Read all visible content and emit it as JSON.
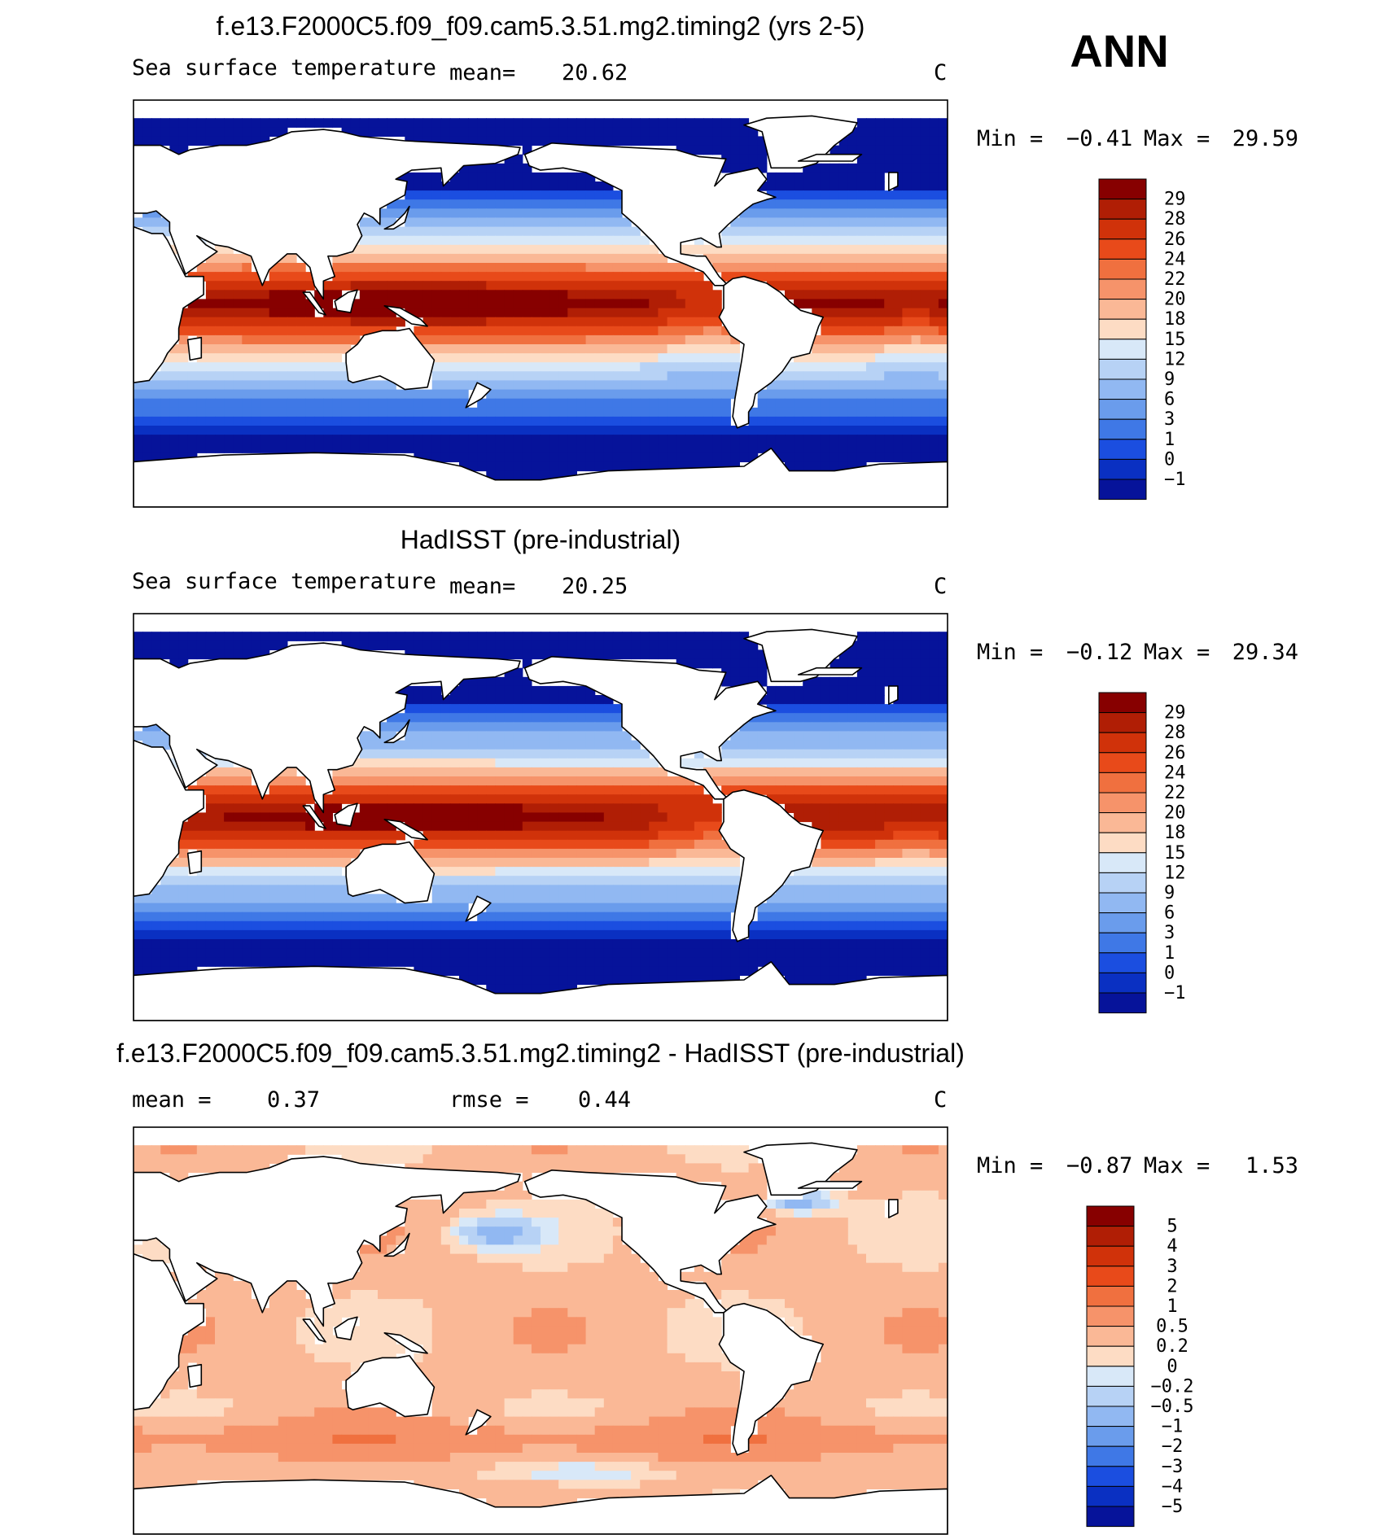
{
  "page_label": "ANN",
  "colors": {
    "land": "#ffffff",
    "coast": "#000000",
    "frame": "#000000"
  },
  "chart_data": [
    {
      "type": "heatmap",
      "id": "model",
      "title": "f.e13.F2000C5.f09_f09.cam5.3.51.mg2.timing2 (yrs 2-5)",
      "left_label": "Sea surface temperature",
      "mean_label": "mean=",
      "mean_value": "20.62",
      "units": "C",
      "min_label": "Min =",
      "min_value": "−0.41",
      "max_label": "Max =",
      "max_value": "29.59",
      "min": -0.41,
      "max": 29.59,
      "field": "sst",
      "levels": [
        "29",
        "28",
        "26",
        "24",
        "22",
        "20",
        "18",
        "15",
        "12",
        "9",
        "6",
        "3",
        "1",
        "0",
        "−1"
      ],
      "colors": [
        "#870000",
        "#b01e05",
        "#d0320a",
        "#e84a1a",
        "#f0703f",
        "#f6936a",
        "#fab896",
        "#fddcc4",
        "#d8e8f8",
        "#b7d2f5",
        "#91b8f2",
        "#6a9cec",
        "#3f78e6",
        "#1b4ee0",
        "#0a30c2",
        "#06139a"
      ]
    },
    {
      "type": "heatmap",
      "id": "obs",
      "title": "HadISST (pre-industrial)",
      "left_label": "Sea surface temperature",
      "mean_label": "mean=",
      "mean_value": "20.25",
      "units": "C",
      "min_label": "Min =",
      "min_value": "−0.12",
      "max_label": "Max =",
      "max_value": "29.34",
      "min": -0.12,
      "max": 29.34,
      "field": "sst",
      "levels": [
        "29",
        "28",
        "26",
        "24",
        "22",
        "20",
        "18",
        "15",
        "12",
        "9",
        "6",
        "3",
        "1",
        "0",
        "−1"
      ],
      "colors": [
        "#870000",
        "#b01e05",
        "#d0320a",
        "#e84a1a",
        "#f0703f",
        "#f6936a",
        "#fab896",
        "#fddcc4",
        "#d8e8f8",
        "#b7d2f5",
        "#91b8f2",
        "#6a9cec",
        "#3f78e6",
        "#1b4ee0",
        "#0a30c2",
        "#06139a"
      ]
    },
    {
      "type": "heatmap",
      "id": "diff",
      "title": "f.e13.F2000C5.f09_f09.cam5.3.51.mg2.timing2 - HadISST (pre-industrial)",
      "mean_label": "mean =",
      "mean_value": "0.37",
      "rmse_label": "rmse =",
      "rmse_value": "0.44",
      "units": "C",
      "min_label": "Min =",
      "min_value": "−0.87",
      "max_label": "Max =",
      "max_value": "1.53",
      "min": -0.87,
      "max": 1.53,
      "field": "diff",
      "levels": [
        "5",
        "4",
        "3",
        "2",
        "1",
        "0.5",
        "0.2",
        "0",
        "−0.2",
        "−0.5",
        "−1",
        "−2",
        "−3",
        "−4",
        "−5"
      ],
      "colors": [
        "#870000",
        "#b01e05",
        "#d0320a",
        "#e84a1a",
        "#f0703f",
        "#f6936a",
        "#fab896",
        "#fddcc4",
        "#d8e8f8",
        "#b7d2f5",
        "#91b8f2",
        "#6a9cec",
        "#3f78e6",
        "#1b4ee0",
        "#0a30c2",
        "#06139a"
      ]
    }
  ]
}
